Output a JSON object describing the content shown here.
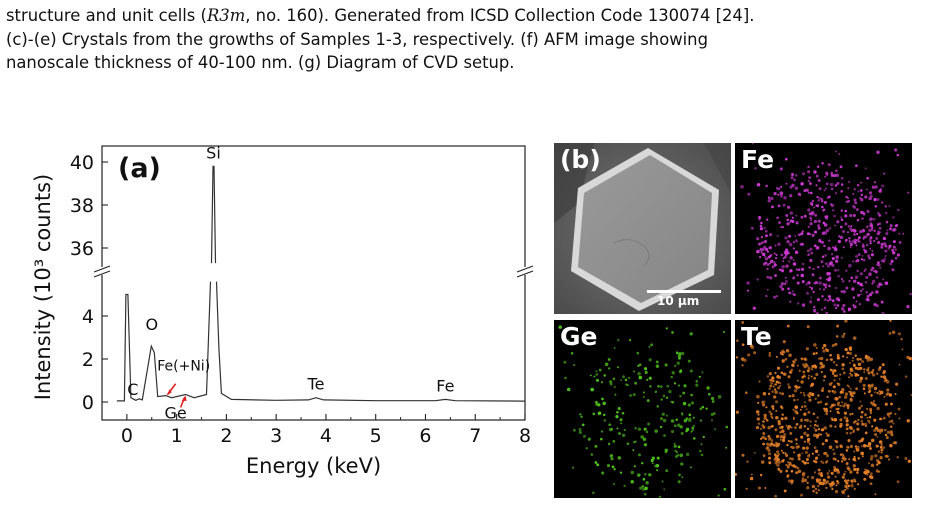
{
  "caption": {
    "line1_a": "structure and unit cells (",
    "line1_sym": "R3m",
    "line1_b": ", no. 160). Generated from ICSD Collection Code 130074 [24].",
    "line2": "(c)-(e) Crystals from the growths of Samples 1-3, respectively. (f) AFM image showing",
    "line3": "nanoscale thickness of 40-100 nm. (g) Diagram of CVD setup."
  },
  "figure_a": {
    "panel_label": "(a)",
    "chart_data": {
      "type": "line",
      "xlabel": "Energy (keV)",
      "ylabel": "Intensity (10³ counts)",
      "xlim": [
        -0.5,
        8
      ],
      "x_ticks": [
        "0",
        "1",
        "2",
        "3",
        "4",
        "5",
        "6",
        "7",
        "8"
      ],
      "y_ticks_lower": [
        "0",
        "2",
        "4"
      ],
      "y_ticks_upper": [
        "36",
        "38",
        "40"
      ],
      "broken_y_axis": true,
      "peaks": [
        {
          "label": "",
          "x": 0.0,
          "y": 5.0
        },
        {
          "label": "C",
          "x": 0.28,
          "y": 0.15
        },
        {
          "label": "O",
          "x": 0.52,
          "y": 2.6
        },
        {
          "label": "Fe(+Ni)",
          "x": 0.78,
          "y": 0.3
        },
        {
          "label": "Ge",
          "x": 1.18,
          "y": 0.35
        },
        {
          "label": "Si",
          "x": 1.74,
          "y": 39.8
        },
        {
          "label": "Te",
          "x": 3.8,
          "y": 0.2
        },
        {
          "label": "Fe",
          "x": 6.4,
          "y": 0.12
        }
      ]
    }
  },
  "figure_b": {
    "sem": {
      "label": "(b)",
      "scale_text": "10 µm"
    },
    "maps": [
      {
        "label": "Fe",
        "color": "#d03ad6"
      },
      {
        "label": "Ge",
        "color": "#52c81c"
      },
      {
        "label": "Te",
        "color": "#e8822a"
      }
    ]
  }
}
